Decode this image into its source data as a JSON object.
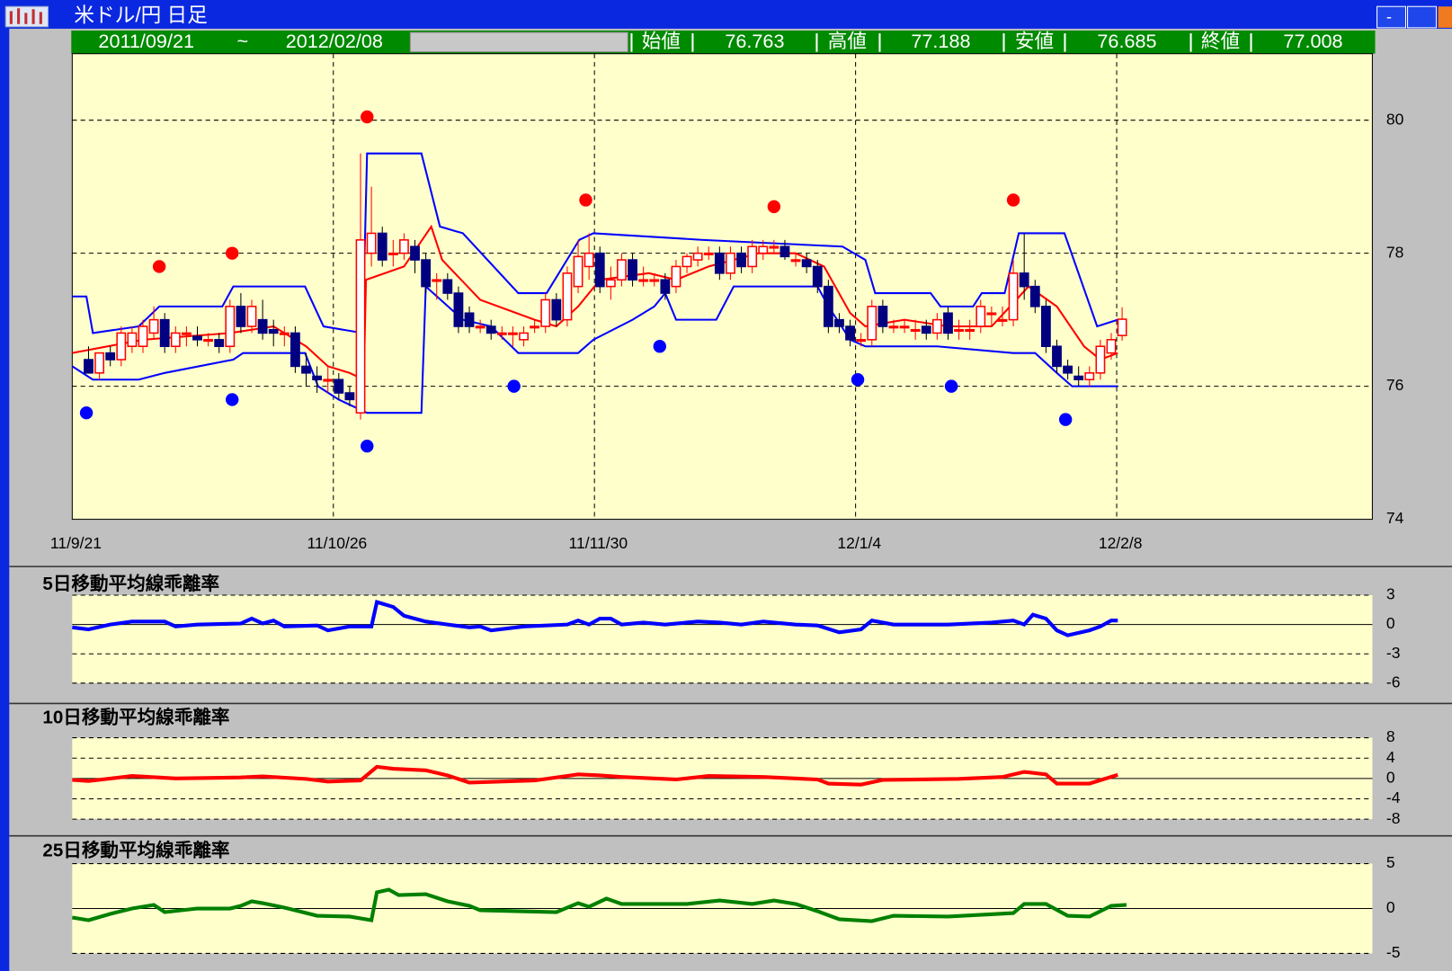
{
  "window": {
    "title": "米ドル/円 日足",
    "minimize": "-"
  },
  "header": {
    "from": "2011/09/21",
    "sep": "~",
    "to": "2012/02/08",
    "fields": [
      {
        "label": "始値",
        "value": "76.763"
      },
      {
        "label": "高値",
        "value": "77.188"
      },
      {
        "label": "安値",
        "value": "76.685"
      },
      {
        "label": "終値",
        "value": "77.008"
      }
    ]
  },
  "chart_data": [
    {
      "type": "candlestick",
      "ylim": [
        74,
        81
      ],
      "yticks": [
        74,
        76,
        78,
        80
      ],
      "xlim": [
        -1.5,
        118
      ],
      "xticks": [
        {
          "value": -1.5,
          "label": "11/9/21"
        },
        {
          "value": 22.5,
          "label": "11/10/26"
        },
        {
          "value": 46.5,
          "label": "11/11/30"
        },
        {
          "value": 70.5,
          "label": "12/1/4"
        },
        {
          "value": 94.5,
          "label": "12/2/8"
        }
      ],
      "grid": true,
      "up_color": "#ff0000",
      "down_color": "#000080",
      "ohlc": [
        [
          76.4,
          76.6,
          76.2,
          76.2
        ],
        [
          76.2,
          76.5,
          76.1,
          76.5
        ],
        [
          76.5,
          76.6,
          76.3,
          76.4
        ],
        [
          76.4,
          76.9,
          76.3,
          76.8
        ],
        [
          76.6,
          76.9,
          76.5,
          76.8
        ],
        [
          76.6,
          77.0,
          76.5,
          76.9
        ],
        [
          76.8,
          77.2,
          76.7,
          77.0
        ],
        [
          77.0,
          77.1,
          76.5,
          76.6
        ],
        [
          76.6,
          76.9,
          76.5,
          76.8
        ],
        [
          76.8,
          76.9,
          76.6,
          76.8
        ],
        [
          76.75,
          76.9,
          76.6,
          76.7
        ],
        [
          76.7,
          76.8,
          76.6,
          76.7
        ],
        [
          76.7,
          76.8,
          76.5,
          76.6
        ],
        [
          76.6,
          77.3,
          76.5,
          77.2
        ],
        [
          77.2,
          77.4,
          76.8,
          76.9
        ],
        [
          76.9,
          77.3,
          76.8,
          77.2
        ],
        [
          77.0,
          77.3,
          76.7,
          76.8
        ],
        [
          76.85,
          77.0,
          76.6,
          76.8
        ],
        [
          76.8,
          76.9,
          76.6,
          76.8
        ],
        [
          76.8,
          76.9,
          76.2,
          76.3
        ],
        [
          76.3,
          76.5,
          76.0,
          76.2
        ],
        [
          76.15,
          76.3,
          75.9,
          76.1
        ],
        [
          76.1,
          76.3,
          75.9,
          76.1
        ],
        [
          76.1,
          76.2,
          75.8,
          75.9
        ],
        [
          75.9,
          76.0,
          75.7,
          75.8
        ],
        [
          75.6,
          79.5,
          75.5,
          78.2
        ],
        [
          78.0,
          79.0,
          77.8,
          78.3
        ],
        [
          78.3,
          78.4,
          77.8,
          77.9
        ],
        [
          78.0,
          78.2,
          77.8,
          78.0
        ],
        [
          78.0,
          78.3,
          77.9,
          78.2
        ],
        [
          78.1,
          78.2,
          77.7,
          77.9
        ],
        [
          77.9,
          78.0,
          77.4,
          77.5
        ],
        [
          77.6,
          77.7,
          77.3,
          77.6
        ],
        [
          77.6,
          77.7,
          77.3,
          77.4
        ],
        [
          77.4,
          77.5,
          76.8,
          76.9
        ],
        [
          77.1,
          77.2,
          76.8,
          76.9
        ],
        [
          76.9,
          77.0,
          76.8,
          76.9
        ],
        [
          76.9,
          77.0,
          76.7,
          76.8
        ],
        [
          76.8,
          76.9,
          76.7,
          76.8
        ],
        [
          76.8,
          76.9,
          76.6,
          76.8
        ],
        [
          76.7,
          76.9,
          76.6,
          76.8
        ],
        [
          76.9,
          77.0,
          76.8,
          76.9
        ],
        [
          76.9,
          77.4,
          76.8,
          77.3
        ],
        [
          77.3,
          77.4,
          76.9,
          77.0
        ],
        [
          77.0,
          77.8,
          76.9,
          77.7
        ],
        [
          77.5,
          78.2,
          77.4,
          77.95
        ],
        [
          77.8,
          78.3,
          77.6,
          78.0
        ],
        [
          78.0,
          78.1,
          77.4,
          77.5
        ],
        [
          77.5,
          77.8,
          77.3,
          77.6
        ],
        [
          77.6,
          78.0,
          77.5,
          77.9
        ],
        [
          77.9,
          78.0,
          77.5,
          77.6
        ],
        [
          77.6,
          77.8,
          77.5,
          77.6
        ],
        [
          77.6,
          77.7,
          77.5,
          77.6
        ],
        [
          77.6,
          77.7,
          77.3,
          77.4
        ],
        [
          77.5,
          77.9,
          77.4,
          77.8
        ],
        [
          77.8,
          78.0,
          77.7,
          77.95
        ],
        [
          77.9,
          78.1,
          77.8,
          78.0
        ],
        [
          78.0,
          78.1,
          77.9,
          78.0
        ],
        [
          78.0,
          78.1,
          77.6,
          77.7
        ],
        [
          77.7,
          78.1,
          77.6,
          78.0
        ],
        [
          78.0,
          78.1,
          77.7,
          77.8
        ],
        [
          77.8,
          78.2,
          77.7,
          78.1
        ],
        [
          78.0,
          78.2,
          77.9,
          78.1
        ],
        [
          78.1,
          78.2,
          78.0,
          78.1
        ],
        [
          78.1,
          78.2,
          77.9,
          77.95
        ],
        [
          77.9,
          78.0,
          77.8,
          77.9
        ],
        [
          77.9,
          78.0,
          77.7,
          77.8
        ],
        [
          77.8,
          77.9,
          77.4,
          77.5
        ],
        [
          77.5,
          77.6,
          76.8,
          76.9
        ],
        [
          77.0,
          77.1,
          76.8,
          76.9
        ],
        [
          76.9,
          77.0,
          76.6,
          76.7
        ],
        [
          76.7,
          76.8,
          76.6,
          76.7
        ],
        [
          76.7,
          77.3,
          76.6,
          77.2
        ],
        [
          77.2,
          77.3,
          76.8,
          76.9
        ],
        [
          76.9,
          77.0,
          76.8,
          76.9
        ],
        [
          76.9,
          77.0,
          76.8,
          76.9
        ],
        [
          76.85,
          77.0,
          76.7,
          76.85
        ],
        [
          76.9,
          77.0,
          76.7,
          76.8
        ],
        [
          76.8,
          77.1,
          76.7,
          77.0
        ],
        [
          77.1,
          77.2,
          76.7,
          76.8
        ],
        [
          76.85,
          77.0,
          76.7,
          76.85
        ],
        [
          76.85,
          77.0,
          76.7,
          76.85
        ],
        [
          76.9,
          77.3,
          76.8,
          77.2
        ],
        [
          77.1,
          77.2,
          76.9,
          77.1
        ],
        [
          77.0,
          77.2,
          76.9,
          77.0
        ],
        [
          77.0,
          77.9,
          76.9,
          77.7
        ],
        [
          77.7,
          78.3,
          77.3,
          77.5
        ],
        [
          77.5,
          77.6,
          77.1,
          77.2
        ],
        [
          77.2,
          77.3,
          76.5,
          76.6
        ],
        [
          76.6,
          76.7,
          76.2,
          76.3
        ],
        [
          76.3,
          76.4,
          76.1,
          76.2
        ],
        [
          76.15,
          76.3,
          76.0,
          76.1
        ],
        [
          76.1,
          76.3,
          76.0,
          76.2
        ],
        [
          76.2,
          76.7,
          76.1,
          76.6
        ],
        [
          76.5,
          76.8,
          76.4,
          76.7
        ],
        [
          76.763,
          77.188,
          76.685,
          77.008
        ]
      ],
      "lines": [
        {
          "color": "#0000ff",
          "x": [
            -1.5,
            -0.2,
            0.4,
            4.6,
            6.5,
            12.3,
            13.3,
            19.9,
            21.6,
            25.2,
            25.6,
            30.6,
            32.3,
            34.4,
            39.5,
            42.1,
            45.1,
            46.4,
            56.5,
            69.3,
            71.4,
            72.3,
            77.4,
            78.3,
            81.3,
            82.1,
            84.2,
            85.5,
            89.7,
            92.7,
            94.6
          ],
          "values": [
            77.35,
            77.35,
            76.8,
            76.9,
            77.2,
            77.2,
            77.5,
            77.5,
            76.9,
            76.8,
            79.5,
            79.5,
            78.4,
            78.3,
            77.4,
            77.4,
            78.2,
            78.3,
            78.2,
            78.1,
            77.9,
            77.4,
            77.4,
            77.2,
            77.2,
            77.4,
            77.4,
            78.3,
            78.3,
            76.9,
            77.0
          ]
        },
        {
          "color": "#0000ff",
          "x": [
            -1.5,
            0.4,
            4.6,
            7,
            13.3,
            14.2,
            19.9,
            21.1,
            23,
            25.6,
            30.6,
            31,
            34.4,
            37,
            39.5,
            45,
            46.4,
            50,
            52,
            53,
            54,
            57.7,
            59.3,
            67,
            68,
            70,
            71.4,
            78,
            85,
            87,
            89,
            90.4,
            94.6
          ],
          "values": [
            76.3,
            76.1,
            76.1,
            76.2,
            76.4,
            76.5,
            76.5,
            76.0,
            75.8,
            75.6,
            75.6,
            77.5,
            77.0,
            76.9,
            76.5,
            76.5,
            76.7,
            77.0,
            77.2,
            77.4,
            77.0,
            77.0,
            77.5,
            77.5,
            77.2,
            76.7,
            76.6,
            76.6,
            76.5,
            76.5,
            76.2,
            76.0,
            76.0
          ]
        },
        {
          "color": "#ff0000",
          "x": [
            -1.5,
            5,
            13,
            17,
            20,
            22,
            24,
            25.3,
            25.5,
            29,
            31.5,
            32.5,
            36,
            41,
            43,
            45,
            47,
            51.5,
            54,
            57,
            61.6,
            65,
            67.6,
            70,
            71.4,
            75,
            79,
            83,
            84.7,
            86.4,
            89,
            91.5,
            93,
            94.6
          ],
          "values": [
            76.5,
            76.7,
            76.8,
            76.9,
            76.6,
            76.3,
            76.2,
            76.1,
            77.6,
            77.8,
            78.4,
            77.9,
            77.3,
            77.0,
            76.9,
            77.2,
            77.6,
            77.7,
            77.6,
            77.8,
            78.0,
            78.0,
            77.8,
            77.1,
            76.9,
            77.0,
            76.9,
            76.9,
            77.2,
            77.5,
            77.2,
            76.6,
            76.4,
            76.5
          ]
        }
      ],
      "dots": [
        {
          "color": "#ff0000",
          "x": [
            6.5,
            13.2,
            25.6,
            45.7,
            63,
            85
          ],
          "values": [
            77.8,
            78.0,
            80.05,
            78.8,
            78.7,
            78.8
          ]
        },
        {
          "color": "#0000ff",
          "x": [
            -0.2,
            13.2,
            25.6,
            39.1,
            52.5,
            70.7,
            79.3,
            89.8
          ],
          "values": [
            75.6,
            75.8,
            75.1,
            76.0,
            76.6,
            76.1,
            76.0,
            75.5
          ]
        }
      ]
    },
    {
      "type": "line",
      "title": "5日移動平均線乖離率",
      "ylim": [
        -6,
        3
      ],
      "yticks": [
        3,
        0,
        -3,
        -6
      ],
      "xlim": [
        -1.5,
        118
      ],
      "series": [
        {
          "color": "#0000ff",
          "x": [
            -1.5,
            0,
            2,
            4,
            7,
            8,
            10,
            14,
            15,
            16,
            17,
            18,
            21,
            22,
            24,
            26,
            26.5,
            28,
            29,
            31,
            33,
            35,
            36,
            37,
            40,
            44,
            45,
            46,
            47,
            48,
            49,
            51,
            53,
            56,
            58,
            60,
            62,
            65,
            67,
            69,
            71,
            72,
            74,
            79,
            83,
            85,
            86,
            86.8,
            88,
            89,
            90,
            92,
            93,
            94,
            94.6
          ],
          "values": [
            -0.3,
            -0.5,
            0,
            0.3,
            0.3,
            -0.2,
            0,
            0.1,
            0.6,
            0.1,
            0.4,
            -0.2,
            -0.1,
            -0.6,
            -0.2,
            -0.2,
            2.3,
            1.8,
            0.9,
            0.3,
            0,
            -0.3,
            -0.2,
            -0.6,
            -0.2,
            0,
            0.4,
            0,
            0.6,
            0.6,
            0,
            0.2,
            0,
            0.3,
            0.2,
            0,
            0.3,
            0,
            -0.1,
            -0.8,
            -0.5,
            0.4,
            0,
            0,
            0.2,
            0.4,
            0,
            1,
            0.6,
            -0.6,
            -1.1,
            -0.6,
            -0.2,
            0.4,
            0.4
          ]
        }
      ]
    },
    {
      "type": "line",
      "title": "10日移動平均線乖離率",
      "ylim": [
        -8,
        8
      ],
      "yticks": [
        8,
        4,
        0,
        -4,
        -8
      ],
      "xlim": [
        -1.5,
        118
      ],
      "series": [
        {
          "color": "#ff0000",
          "x": [
            -1.5,
            0,
            4,
            8,
            14,
            16,
            20,
            22,
            25,
            26.5,
            28,
            31,
            33,
            35,
            41,
            45,
            47,
            49,
            54,
            57,
            62,
            67,
            68,
            71,
            73,
            80,
            84,
            86,
            88,
            89,
            92,
            94.6
          ],
          "values": [
            -0.3,
            -0.5,
            0.5,
            0,
            0.2,
            0.4,
            -0.1,
            -0.6,
            -0.4,
            2.3,
            1.9,
            1.6,
            0.6,
            -0.8,
            -0.4,
            0.8,
            0.6,
            0.3,
            -0.2,
            0.5,
            0.3,
            -0.2,
            -1.0,
            -1.2,
            -0.3,
            -0.1,
            0.3,
            1.3,
            0.8,
            -1.0,
            -1.0,
            0.7
          ]
        }
      ]
    },
    {
      "type": "line",
      "title": "25日移動平均線乖離率",
      "ylim": [
        -5,
        5
      ],
      "yticks": [
        5,
        0,
        -5
      ],
      "xlim": [
        -1.5,
        118
      ],
      "series": [
        {
          "color": "#008000",
          "x": [
            -1.5,
            0,
            2,
            4,
            6,
            7,
            10,
            13,
            14,
            15,
            16,
            18,
            21,
            24,
            26,
            26.5,
            27.6,
            28.5,
            31,
            33,
            35,
            36,
            43,
            45,
            46,
            47.6,
            49,
            55,
            58,
            61,
            63,
            65,
            67,
            69,
            72,
            74,
            79,
            85,
            86,
            88,
            90,
            92,
            94,
            95.4
          ],
          "values": [
            -1.0,
            -1.3,
            -0.6,
            0,
            0.4,
            -0.4,
            0,
            0,
            0.3,
            0.8,
            0.6,
            0.1,
            -0.8,
            -0.9,
            -1.3,
            1.8,
            2.1,
            1.5,
            1.6,
            0.8,
            0.3,
            -0.2,
            -0.4,
            0.6,
            0.2,
            1.1,
            0.5,
            0.5,
            0.9,
            0.5,
            0.9,
            0.5,
            -0.3,
            -1.2,
            -1.4,
            -0.8,
            -0.9,
            -0.5,
            0.5,
            0.5,
            -0.8,
            -0.9,
            0.3,
            0.4
          ]
        }
      ]
    }
  ]
}
